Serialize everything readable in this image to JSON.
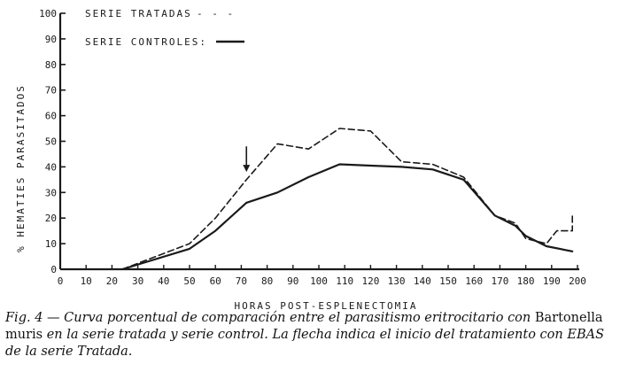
{
  "chart_data": {
    "type": "line",
    "xlabel": "HORAS POST-ESPLENECTOMIA",
    "ylabel": "% HEMATIES PARASITADOS",
    "xlim": [
      0,
      200
    ],
    "ylim": [
      0,
      100
    ],
    "xticks": [
      0,
      10,
      20,
      30,
      40,
      50,
      60,
      70,
      80,
      90,
      100,
      110,
      120,
      130,
      140,
      150,
      160,
      170,
      180,
      190,
      200
    ],
    "yticks": [
      0,
      10,
      20,
      30,
      40,
      50,
      60,
      70,
      80,
      90,
      100
    ],
    "legend_position": "top-left",
    "series": [
      {
        "name": "SERIE TRATADAS",
        "legend_symbol": "- - -",
        "style": "dashed",
        "points": [
          [
            24,
            0
          ],
          [
            50,
            10
          ],
          [
            60,
            20
          ],
          [
            72,
            35
          ],
          [
            84,
            49
          ],
          [
            96,
            47
          ],
          [
            108,
            55
          ],
          [
            120,
            54
          ],
          [
            132,
            42
          ],
          [
            144,
            41
          ],
          [
            156,
            36
          ],
          [
            168,
            21
          ],
          [
            176,
            18
          ],
          [
            180,
            12
          ],
          [
            188,
            10
          ],
          [
            192,
            15
          ],
          [
            198,
            15
          ],
          [
            198,
            22
          ]
        ]
      },
      {
        "name": "SERIE CONTROLES:",
        "style": "solid",
        "points": [
          [
            24,
            0
          ],
          [
            50,
            8
          ],
          [
            60,
            15
          ],
          [
            72,
            26
          ],
          [
            84,
            30
          ],
          [
            96,
            36
          ],
          [
            108,
            41
          ],
          [
            120,
            40.5
          ],
          [
            132,
            40
          ],
          [
            144,
            39
          ],
          [
            156,
            35
          ],
          [
            168,
            21
          ],
          [
            176,
            17
          ],
          [
            180,
            13
          ],
          [
            188,
            9
          ],
          [
            198,
            7
          ]
        ]
      }
    ],
    "annotations": [
      {
        "type": "arrow",
        "x": 72,
        "y_from": 48,
        "y_to": 38
      }
    ]
  },
  "caption": {
    "fig_label": "Fig. 4",
    "dash": " — ",
    "text_1": "Curva porcentual de comparación entre el parasitismo eritrocitario con ",
    "organism": "Bartonella muris",
    "text_2": " en la serie tratada y serie control. La flecha indica el inicio del tratamiento con EBAS de la serie Tratada."
  }
}
